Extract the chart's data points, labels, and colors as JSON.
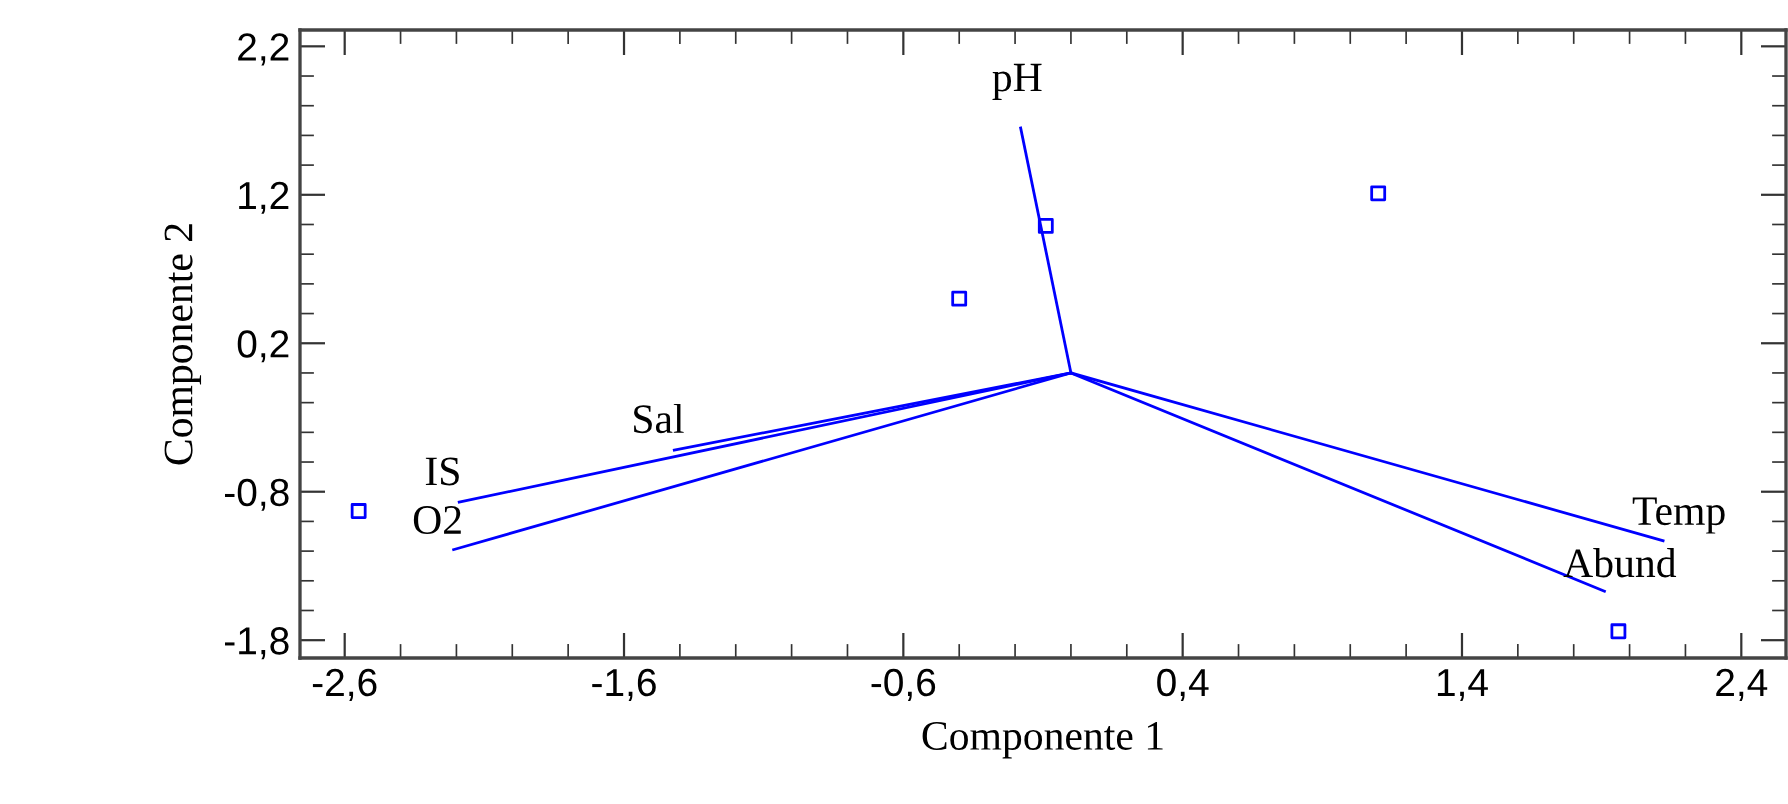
{
  "chart_data": {
    "type": "scatter",
    "xlabel": "Componente 1",
    "ylabel": "Componente 2",
    "xlim": [
      -2.76,
      2.56
    ],
    "ylim": [
      -1.92,
      2.31
    ],
    "xticks": [
      {
        "value": -2.6,
        "label": "-2,6"
      },
      {
        "value": -1.6,
        "label": "-1,6"
      },
      {
        "value": -0.6,
        "label": "-0,6"
      },
      {
        "value": 0.4,
        "label": "0,4"
      },
      {
        "value": 1.4,
        "label": "1,4"
      },
      {
        "value": 2.4,
        "label": "2,4"
      }
    ],
    "yticks": [
      {
        "value": -1.8,
        "label": "-1,8"
      },
      {
        "value": -0.8,
        "label": "-0,8"
      },
      {
        "value": 0.2,
        "label": "0,2"
      },
      {
        "value": 1.2,
        "label": "1,2"
      },
      {
        "value": 2.2,
        "label": "2,2"
      }
    ],
    "grid": false,
    "series": [
      {
        "color": "#0000ff",
        "marker": "square",
        "x": [
          -2.55,
          -0.4,
          -0.09,
          1.1,
          1.96
        ],
        "values": [
          -0.93,
          0.5,
          0.99,
          1.21,
          -1.74
        ]
      },
      {
        "type": "line",
        "name": "pH",
        "color": "#0000ff",
        "marker": "none",
        "x": [
          0,
          -0.18
        ],
        "values": [
          0,
          1.65
        ]
      },
      {
        "type": "line",
        "name": "Sal",
        "color": "#0000ff",
        "marker": "none",
        "x": [
          0,
          -1.42
        ],
        "values": [
          0,
          -0.52
        ]
      },
      {
        "type": "line",
        "name": "IS",
        "color": "#0000ff",
        "marker": "none",
        "x": [
          0,
          -2.19
        ],
        "values": [
          0,
          -0.87
        ]
      },
      {
        "type": "line",
        "name": "O2",
        "color": "#0000ff",
        "marker": "none",
        "x": [
          0,
          -2.21
        ],
        "values": [
          0,
          -1.19
        ]
      },
      {
        "type": "line",
        "name": "Temp",
        "color": "#0000ff",
        "marker": "none",
        "x": [
          0,
          2.12
        ],
        "values": [
          0,
          -1.13
        ]
      },
      {
        "type": "line",
        "name": "Abund",
        "color": "#0000ff",
        "marker": "none",
        "x": [
          0,
          1.91
        ],
        "values": [
          0,
          -1.47
        ]
      }
    ]
  }
}
